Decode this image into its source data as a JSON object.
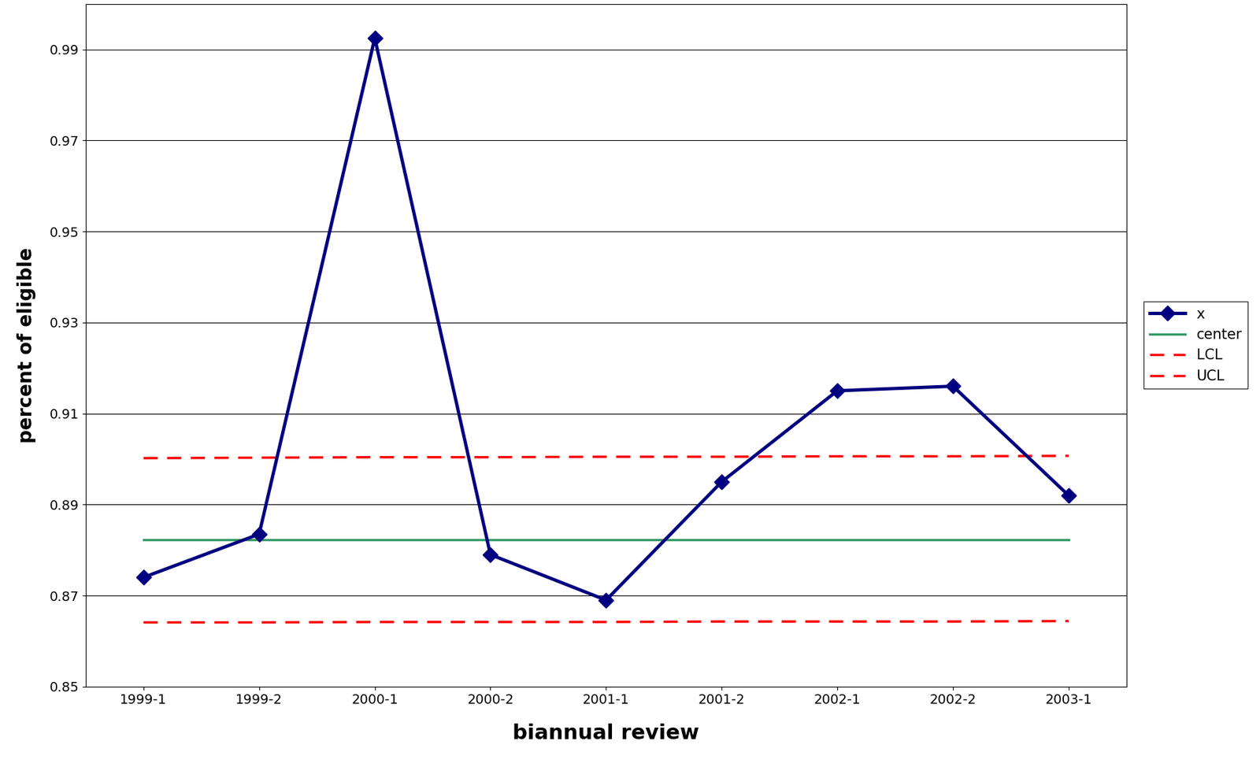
{
  "chart_data": {
    "type": "line",
    "x_label": "biannual review",
    "y_label": "percent of eligible",
    "categories": [
      "1999-1",
      "1999-2",
      "2000-1",
      "2000-2",
      "2001-1",
      "2001-2",
      "2002-1",
      "2002-2",
      "2003-1"
    ],
    "series": [
      {
        "name": "x",
        "color": "#000080",
        "marker": "diamond",
        "line_style": "solid",
        "values": [
          0.874,
          0.8835,
          0.9925,
          0.879,
          0.869,
          0.895,
          0.915,
          0.916,
          0.892
        ]
      },
      {
        "name": "center",
        "color": "#339966",
        "marker": "none",
        "line_style": "solid",
        "values": [
          0.8823,
          0.8823,
          0.8823,
          0.8823,
          0.8823,
          0.8823,
          0.8823,
          0.8823,
          0.8823
        ]
      },
      {
        "name": "LCL",
        "color": "#ff0000",
        "marker": "none",
        "line_style": "dashed",
        "values": [
          0.8641,
          0.8641,
          0.8642,
          0.8642,
          0.8642,
          0.8643,
          0.8643,
          0.8643,
          0.8644
        ]
      },
      {
        "name": "UCL",
        "color": "#ff0000",
        "marker": "none",
        "line_style": "dashed",
        "values": [
          0.9002,
          0.9003,
          0.9004,
          0.9004,
          0.9005,
          0.9005,
          0.9006,
          0.9006,
          0.9007
        ]
      }
    ],
    "ylim": [
      0.85,
      1.0
    ],
    "yticks": [
      0.85,
      0.87,
      0.89,
      0.91,
      0.93,
      0.95,
      0.97,
      0.99
    ],
    "grid": "y",
    "legend": "right"
  }
}
